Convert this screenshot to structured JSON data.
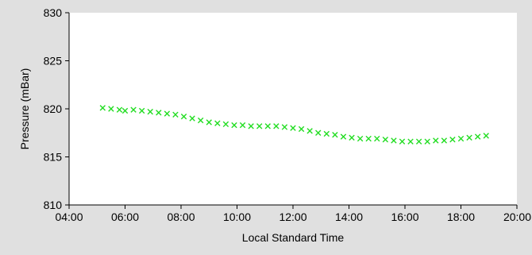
{
  "chart_data": {
    "type": "scatter",
    "xlabel": "Local Standard Time",
    "ylabel": "Pressure (mBar)",
    "xlim": [
      4,
      20
    ],
    "ylim": [
      810,
      830
    ],
    "x_ticks": [
      {
        "v": 4,
        "label": "04:00"
      },
      {
        "v": 6,
        "label": "06:00"
      },
      {
        "v": 8,
        "label": "08:00"
      },
      {
        "v": 10,
        "label": "10:00"
      },
      {
        "v": 12,
        "label": "12:00"
      },
      {
        "v": 14,
        "label": "14:00"
      },
      {
        "v": 16,
        "label": "16:00"
      },
      {
        "v": 18,
        "label": "18:00"
      },
      {
        "v": 20,
        "label": "20:00"
      }
    ],
    "y_ticks": [
      {
        "v": 810,
        "label": "810"
      },
      {
        "v": 815,
        "label": "815"
      },
      {
        "v": 820,
        "label": "820"
      },
      {
        "v": 825,
        "label": "825"
      },
      {
        "v": 830,
        "label": "830"
      }
    ],
    "grid": false,
    "marker": "x",
    "colors": {
      "series": "#22dd22",
      "background": "#e0e0e0",
      "plot": "#ffffff"
    },
    "series": [
      {
        "x": [
          5.2,
          5.5,
          5.8,
          6.0,
          6.3,
          6.6,
          6.9,
          7.2,
          7.5,
          7.8,
          8.1,
          8.4,
          8.7,
          9.0,
          9.3,
          9.6,
          9.9,
          10.2,
          10.5,
          10.8,
          11.1,
          11.4,
          11.7,
          12.0,
          12.3,
          12.6,
          12.9,
          13.2,
          13.5,
          13.8,
          14.1,
          14.4,
          14.7,
          15.0,
          15.3,
          15.6,
          15.9,
          16.2,
          16.5,
          16.8,
          17.1,
          17.4,
          17.7,
          18.0,
          18.3,
          18.6,
          18.9
        ],
        "y": [
          820.1,
          820.0,
          819.9,
          819.8,
          819.9,
          819.8,
          819.7,
          819.6,
          819.5,
          819.4,
          819.2,
          819.0,
          818.8,
          818.6,
          818.5,
          818.4,
          818.3,
          818.3,
          818.2,
          818.2,
          818.2,
          818.2,
          818.1,
          818.0,
          817.9,
          817.7,
          817.5,
          817.4,
          817.3,
          817.1,
          817.0,
          816.9,
          816.9,
          816.9,
          816.8,
          816.7,
          816.6,
          816.6,
          816.6,
          816.6,
          816.7,
          816.7,
          816.8,
          816.9,
          817.0,
          817.1,
          817.2
        ]
      }
    ]
  }
}
